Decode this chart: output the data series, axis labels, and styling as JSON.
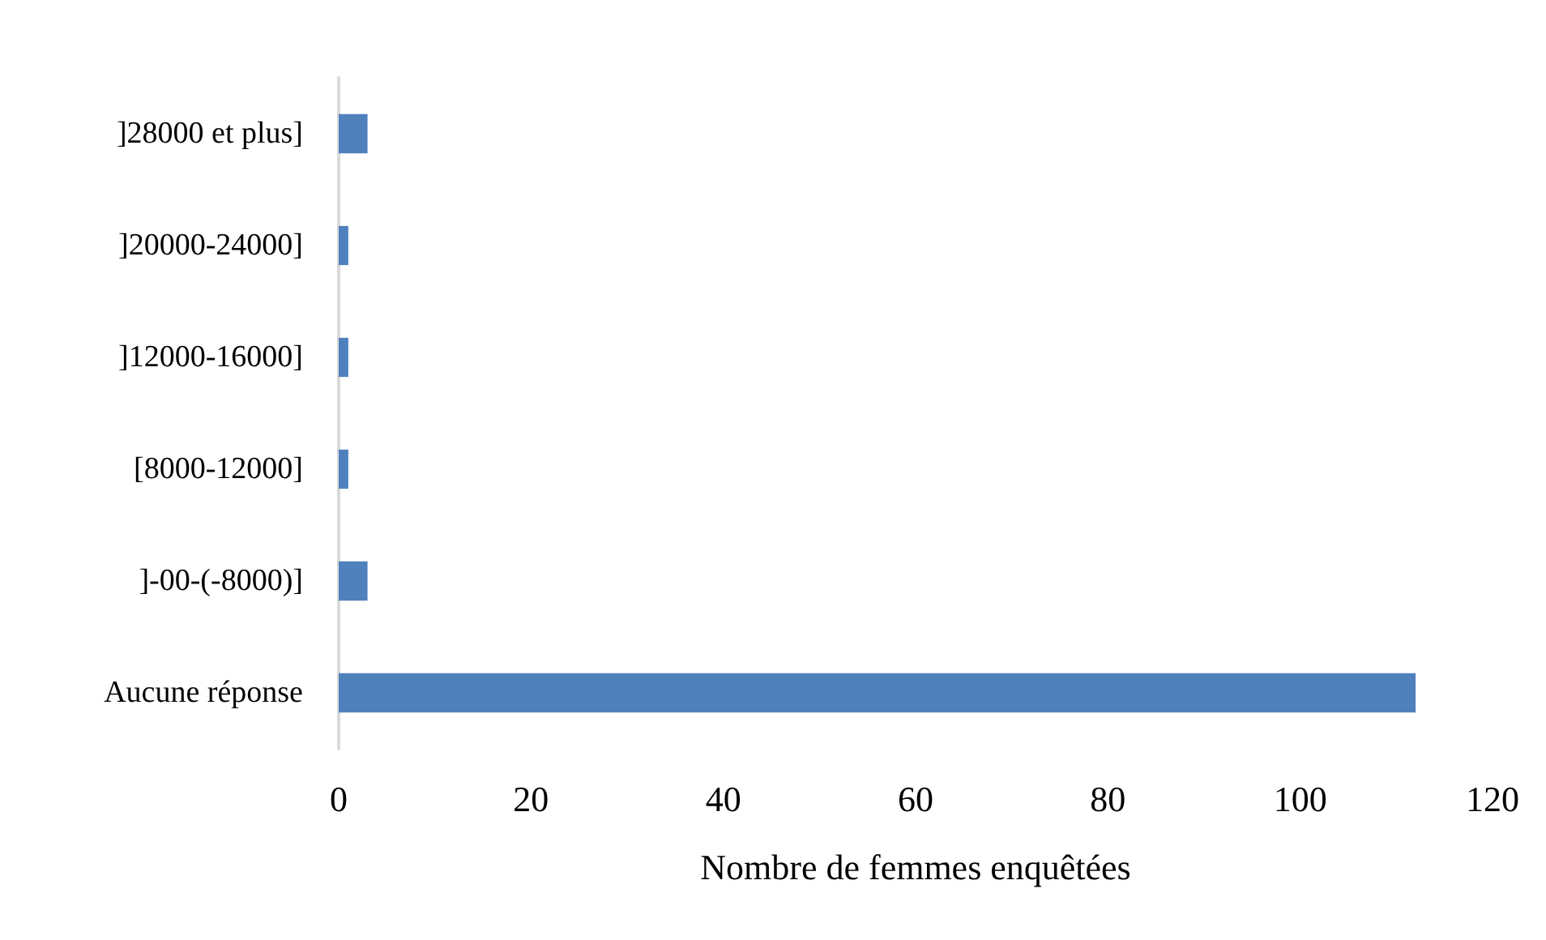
{
  "chart_data": {
    "type": "bar",
    "orientation": "horizontal",
    "xlabel": "Nombre de femmes enquêtées",
    "categories": [
      "]28000 et plus]",
      "]20000-24000]",
      "]12000-16000]",
      "[8000-12000]",
      "]-00-(-8000)]",
      "Aucune réponse"
    ],
    "values": [
      3,
      1,
      1,
      1,
      3,
      112
    ],
    "color": "#4f81bd",
    "xlim": [
      0,
      120
    ],
    "xticks": [
      0,
      20,
      40,
      60,
      80,
      100,
      120
    ],
    "grid": false
  }
}
